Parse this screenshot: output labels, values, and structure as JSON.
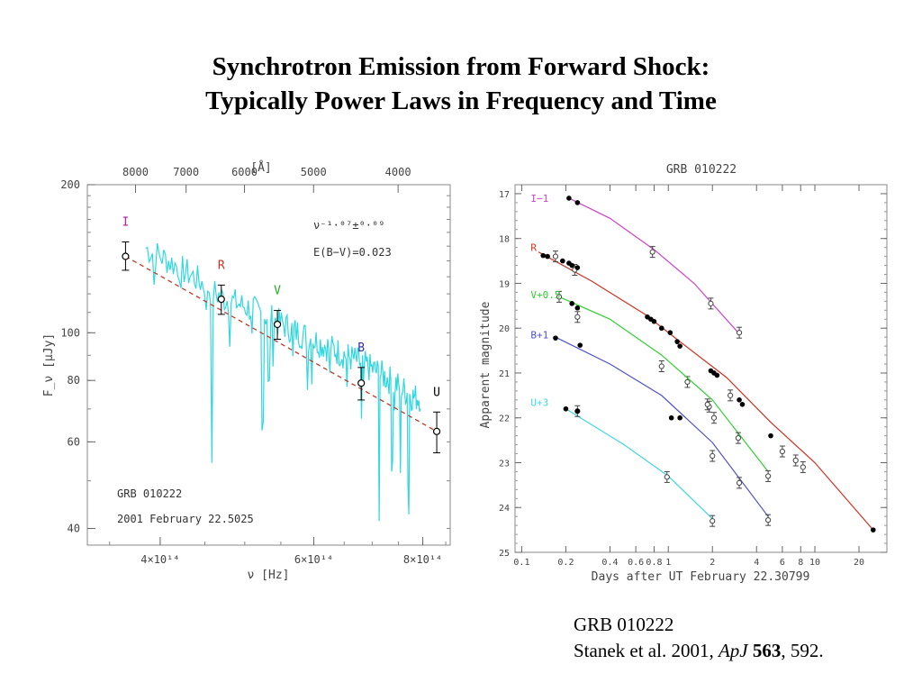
{
  "slide": {
    "title_line1": "Synchrotron Emission from Forward Shock:",
    "title_line2": "Typically Power Laws in Frequency and Time"
  },
  "citation": {
    "line1": "GRB 010222",
    "authors": "Stanek et al. 2001, ",
    "journal": "ApJ",
    "volume": "563",
    "pages": ", 592."
  },
  "chart_data": [
    {
      "type": "scatter",
      "xlabel": "ν [Hz]",
      "ylabel": "F_ν [μJy]",
      "top_axis_label": "[Å]",
      "x_scale": "log",
      "y_scale": "log",
      "xlim": [
        330000000000000,
        860000000000000
      ],
      "ylim": [
        37,
        200
      ],
      "x_ticks": [
        {
          "value": 400000000000000,
          "label": "4×10¹⁴"
        },
        {
          "value": 600000000000000,
          "label": "6×10¹⁴"
        },
        {
          "value": 800000000000000,
          "label": "8×10¹⁴"
        }
      ],
      "top_ticks": [
        {
          "value": 8000,
          "label": "8000"
        },
        {
          "value": 7000,
          "label": "7000"
        },
        {
          "value": 6000,
          "label": "6000"
        },
        {
          "value": 5000,
          "label": "5000"
        },
        {
          "value": 4000,
          "label": "4000"
        }
      ],
      "y_ticks": [
        {
          "value": 200,
          "label": "200"
        },
        {
          "value": 100,
          "label": "100"
        },
        {
          "value": 80,
          "label": "80"
        },
        {
          "value": 60,
          "label": "60"
        },
        {
          "value": 40,
          "label": "40"
        }
      ],
      "fit_label": "ν⁻¹·⁰⁷±⁰·⁰⁹",
      "extinction_label": "E(B−V)=0.023",
      "annotation_line1": "GRB 010222",
      "annotation_line2": "2001 February 22.5025",
      "fit": {
        "x": [
          365000000000000,
          830000000000000
        ],
        "y": [
          143,
          63
        ],
        "color": "#c0392b"
      },
      "spectrum": {
        "color": "#2fd8e0",
        "x": [
          420000000000000,
          470000000000000,
          520000000000000,
          570000000000000,
          620000000000000,
          670000000000000,
          720000000000000,
          780000000000000
        ],
        "y": [
          136,
          118,
          110,
          101,
          94,
          88,
          82,
          74
        ]
      },
      "points": [
        {
          "band": "I",
          "x": 365000000000000,
          "y": 143,
          "err": [
            9,
            10
          ],
          "color": "#b0209a"
        },
        {
          "band": "R",
          "x": 470000000000000,
          "y": 117,
          "err": [
            8,
            8
          ],
          "color": "#d03020"
        },
        {
          "band": "V",
          "x": 545000000000000,
          "y": 104,
          "err": [
            7,
            7
          ],
          "color": "#20b020"
        },
        {
          "band": "B",
          "x": 680000000000000,
          "y": 79,
          "err": [
            6,
            6
          ],
          "color": "#3030b0"
        },
        {
          "band": "U",
          "x": 830000000000000,
          "y": 63,
          "err": [
            6,
            6
          ],
          "color": "#000000"
        }
      ]
    },
    {
      "type": "line",
      "title": "GRB 010222",
      "xlabel": "Days after UT February 22.30799",
      "ylabel": "Apparent magnitude",
      "x_scale": "log",
      "y_reversed": true,
      "xlim": [
        0.09,
        31
      ],
      "ylim": [
        16.8,
        25
      ],
      "x_ticks": [
        {
          "value": 0.1,
          "label": "0.1"
        },
        {
          "value": 0.2,
          "label": "0.2"
        },
        {
          "value": 0.4,
          "label": "0.4"
        },
        {
          "value": 0.6,
          "label": "0.6"
        },
        {
          "value": 0.8,
          "label": "0.8"
        },
        {
          "value": 1,
          "label": "1"
        },
        {
          "value": 2,
          "label": "2"
        },
        {
          "value": 4,
          "label": "4"
        },
        {
          "value": 6,
          "label": "6"
        },
        {
          "value": 8,
          "label": "8"
        },
        {
          "value": 10,
          "label": "10"
        },
        {
          "value": 20,
          "label": "20"
        }
      ],
      "y_ticks": [
        {
          "value": 17,
          "label": "17"
        },
        {
          "value": 18,
          "label": "18"
        },
        {
          "value": 19,
          "label": "19"
        },
        {
          "value": 20,
          "label": "20"
        },
        {
          "value": 21,
          "label": "21"
        },
        {
          "value": 22,
          "label": "22"
        },
        {
          "value": 23,
          "label": "23"
        },
        {
          "value": 24,
          "label": "24"
        },
        {
          "value": 25,
          "label": "25"
        }
      ],
      "series": [
        {
          "name": "I−1",
          "color": "#d040c8",
          "label_x": 0.115,
          "label_y": 17.1,
          "curve": [
            [
              0.21,
              17.1
            ],
            [
              0.4,
              17.55
            ],
            [
              0.8,
              18.25
            ],
            [
              1.5,
              19.0
            ],
            [
              3.0,
              20.1
            ]
          ],
          "filled": [
            [
              0.21,
              17.1
            ],
            [
              0.24,
              17.2
            ]
          ],
          "open": [
            [
              0.78,
              18.3
            ],
            [
              1.95,
              19.45
            ],
            [
              3.05,
              20.1
            ]
          ]
        },
        {
          "name": "R",
          "color": "#d03020",
          "label_x": 0.115,
          "label_y": 18.2,
          "curve": [
            [
              0.13,
              18.3
            ],
            [
              0.3,
              18.95
            ],
            [
              0.7,
              19.7
            ],
            [
              1.2,
              20.3
            ],
            [
              2.5,
              21.1
            ],
            [
              5,
              22.1
            ],
            [
              10,
              23.0
            ],
            [
              25,
              24.5
            ]
          ],
          "filled": [
            [
              0.14,
              18.38
            ],
            [
              0.15,
              18.4
            ],
            [
              0.19,
              18.5
            ],
            [
              0.21,
              18.55
            ],
            [
              0.22,
              18.6
            ],
            [
              0.24,
              18.65
            ],
            [
              0.72,
              19.75
            ],
            [
              0.76,
              19.8
            ],
            [
              0.8,
              19.85
            ],
            [
              0.9,
              20.0
            ],
            [
              1.03,
              20.1
            ],
            [
              1.15,
              20.3
            ],
            [
              1.2,
              20.4
            ],
            [
              1.95,
              20.95
            ],
            [
              2.05,
              21.0
            ],
            [
              2.15,
              21.05
            ],
            [
              3.05,
              21.6
            ],
            [
              3.2,
              21.7
            ],
            [
              5,
              22.4
            ],
            [
              25,
              24.5
            ]
          ],
          "open": [
            [
              0.17,
              18.4
            ],
            [
              0.23,
              18.7
            ],
            [
              1.35,
              21.2
            ],
            [
              2.65,
              21.5
            ],
            [
              6,
              22.75
            ],
            [
              7.4,
              22.95
            ],
            [
              8.3,
              23.1
            ]
          ]
        },
        {
          "name": "V+0.5",
          "color": "#30d030",
          "label_x": 0.115,
          "label_y": 19.25,
          "curve": [
            [
              0.18,
              19.3
            ],
            [
              0.4,
              19.8
            ],
            [
              0.9,
              20.6
            ],
            [
              2,
              21.6
            ],
            [
              4.8,
              23.2
            ]
          ],
          "filled": [
            [
              0.22,
              19.45
            ],
            [
              0.24,
              19.55
            ]
          ],
          "open": [
            [
              0.18,
              19.3
            ],
            [
              0.24,
              19.75
            ],
            [
              0.9,
              20.85
            ],
            [
              1.9,
              21.75
            ],
            [
              2.05,
              22.0
            ],
            [
              3.0,
              22.45
            ],
            [
              4.8,
              23.3
            ]
          ]
        },
        {
          "name": "B+1",
          "color": "#5050c8",
          "label_x": 0.115,
          "label_y": 20.15,
          "curve": [
            [
              0.17,
              20.2
            ],
            [
              0.4,
              20.8
            ],
            [
              0.9,
              21.5
            ],
            [
              2.0,
              22.55
            ],
            [
              4.8,
              24.2
            ]
          ],
          "filled": [
            [
              0.17,
              20.22
            ],
            [
              0.25,
              20.38
            ],
            [
              1.05,
              22.0
            ],
            [
              1.2,
              22.0
            ]
          ],
          "open": [
            [
              1.85,
              21.7
            ],
            [
              2.0,
              22.85
            ],
            [
              3.05,
              23.45
            ],
            [
              4.8,
              24.28
            ]
          ]
        },
        {
          "name": "U+3",
          "color": "#40d8e0",
          "label_x": 0.115,
          "label_y": 21.65,
          "curve": [
            [
              0.2,
              21.8
            ],
            [
              0.5,
              22.6
            ],
            [
              1.0,
              23.3
            ],
            [
              2.0,
              24.25
            ]
          ],
          "filled": [
            [
              0.2,
              21.8
            ],
            [
              0.24,
              21.85
            ]
          ],
          "open": [
            [
              0.24,
              21.85
            ],
            [
              0.98,
              23.32
            ],
            [
              2.0,
              24.3
            ]
          ]
        }
      ]
    }
  ]
}
